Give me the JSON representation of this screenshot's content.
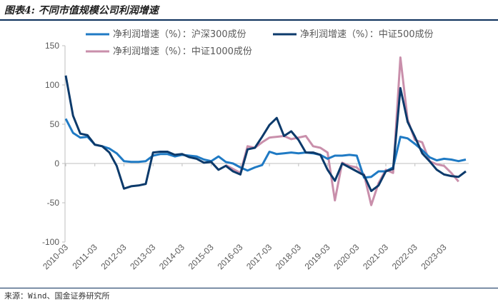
{
  "header": {
    "title": "图表4: 不同市值规模公司利润增速"
  },
  "footer": {
    "source": "来源：Wind、国金证券研究所"
  },
  "colors": {
    "hs300": "#1f7ac4",
    "zz500": "#0c3a6b",
    "zz1000": "#c98fab",
    "axis": "#bfbfbf",
    "rule": "#0c2f5b"
  },
  "chart_data": {
    "type": "line",
    "title": "",
    "xlabel": "",
    "ylabel": "",
    "ylim": [
      -100,
      150
    ],
    "yticks": [
      -100,
      -50,
      0,
      50,
      100,
      150
    ],
    "xtick_labels": [
      "2010-03",
      "2011-03",
      "2012-03",
      "2013-03",
      "2014-03",
      "2015-03",
      "2016-03",
      "2017-03",
      "2018-03",
      "2019-03",
      "2020-03",
      "2021-03",
      "2022-03",
      "2023-03"
    ],
    "grid": false,
    "legend": "top",
    "series": [
      {
        "name": "净利润增速（%）：沪深300成份",
        "values": [
          57,
          39,
          33,
          34,
          24,
          22,
          19,
          13,
          3,
          2,
          2,
          3,
          10,
          12,
          12,
          9,
          11,
          10,
          9,
          5,
          3,
          9,
          2,
          0,
          -5,
          -9,
          -5,
          -2,
          15,
          12,
          13,
          14,
          13,
          14,
          13,
          11,
          6,
          10,
          10,
          11,
          10,
          -18,
          -17,
          -10,
          -10,
          -5,
          34,
          32,
          25,
          17,
          8,
          4,
          6,
          5,
          3,
          5
        ]
      },
      {
        "name": "净利润增速（%）：中证500成份",
        "values": [
          112,
          61,
          38,
          36,
          24,
          22,
          14,
          -3,
          -32,
          -29,
          -28,
          -26,
          14,
          15,
          15,
          11,
          12,
          8,
          6,
          1,
          2,
          -8,
          -3,
          -10,
          -14,
          18,
          20,
          34,
          49,
          58,
          35,
          41,
          30,
          14,
          14,
          11,
          -8,
          -22,
          0,
          -5,
          -10,
          -15,
          -35,
          -28,
          -10,
          -7,
          96,
          53,
          34,
          13,
          3,
          -8,
          -14,
          -16,
          -17,
          -10
        ]
      },
      {
        "name": "净利润增速（%）：中证1000成份",
        "values": [
          null,
          null,
          null,
          null,
          null,
          null,
          null,
          null,
          null,
          null,
          null,
          null,
          null,
          null,
          null,
          null,
          null,
          null,
          null,
          null,
          null,
          null,
          -2,
          -7,
          -12,
          22,
          20,
          27,
          33,
          34,
          35,
          31,
          33,
          35,
          22,
          20,
          14,
          -47,
          1,
          -3,
          -5,
          -14,
          -53,
          -25,
          -8,
          -12,
          135,
          56,
          30,
          27,
          3,
          -1,
          -3,
          -12,
          -23,
          null
        ]
      }
    ]
  }
}
